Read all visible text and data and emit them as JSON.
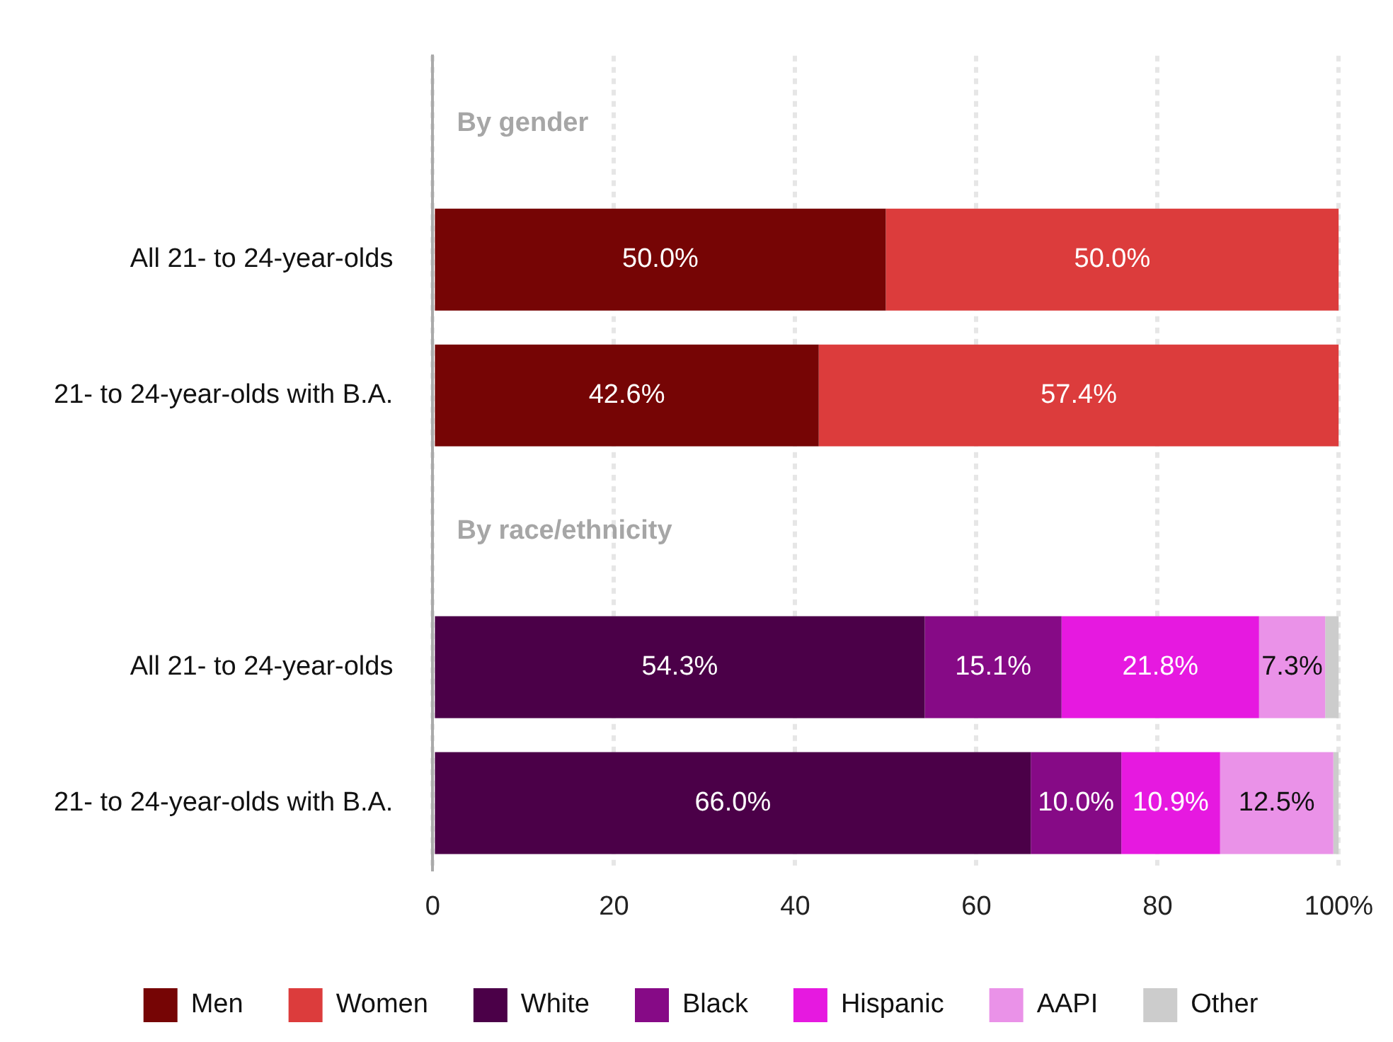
{
  "chart_data": {
    "type": "bar",
    "orientation": "horizontal",
    "stacked": true,
    "categories": [
      null,
      "All 21- to 24-year-olds",
      "21- to 24-year-olds with B.A.",
      null,
      "All 21- to 24-year-olds",
      "21- to 24-year-olds with B.A."
    ],
    "series": [
      {
        "name": "Men",
        "color": "#760505",
        "values": [
          null,
          50.0,
          42.6,
          null,
          null,
          null
        ],
        "value_labels": [
          null,
          "50.0%",
          "42.6%",
          null,
          null,
          null
        ]
      },
      {
        "name": "Women",
        "color": "#dc3c3c",
        "values": [
          null,
          50.0,
          57.4,
          null,
          null,
          null
        ],
        "value_labels": [
          null,
          "50.0%",
          "57.4%",
          null,
          null,
          null
        ]
      },
      {
        "name": "White",
        "color": "#4b0048",
        "values": [
          null,
          null,
          null,
          null,
          54.3,
          66.0
        ],
        "value_labels": [
          null,
          null,
          null,
          null,
          "54.3%",
          "66.0%"
        ]
      },
      {
        "name": "Black",
        "color": "#860a86",
        "values": [
          null,
          null,
          null,
          null,
          15.1,
          10.0
        ],
        "value_labels": [
          null,
          null,
          null,
          null,
          "15.1%",
          "10.0%"
        ]
      },
      {
        "name": "Hispanic",
        "color": "#e619e0",
        "values": [
          null,
          null,
          null,
          null,
          21.8,
          10.9
        ],
        "value_labels": [
          null,
          null,
          null,
          null,
          "21.8%",
          "10.9%"
        ]
      },
      {
        "name": "AAPI",
        "color": "#ea92e8",
        "values": [
          null,
          null,
          null,
          null,
          7.3,
          12.5
        ],
        "value_labels": [
          null,
          null,
          null,
          null,
          "7.3%",
          "12.5%"
        ]
      },
      {
        "name": "Other",
        "color": "#cccccc",
        "values": [
          null,
          null,
          null,
          null,
          1.5,
          0.6
        ]
      }
    ],
    "annotations": [
      "By gender",
      "By race/ethnicity"
    ],
    "xlim": [
      0,
      100
    ],
    "xticks": [
      0,
      20,
      40,
      60,
      80,
      {
        "value": 100,
        "label": "100%"
      }
    ],
    "grid": "x",
    "legend": "bottom"
  }
}
